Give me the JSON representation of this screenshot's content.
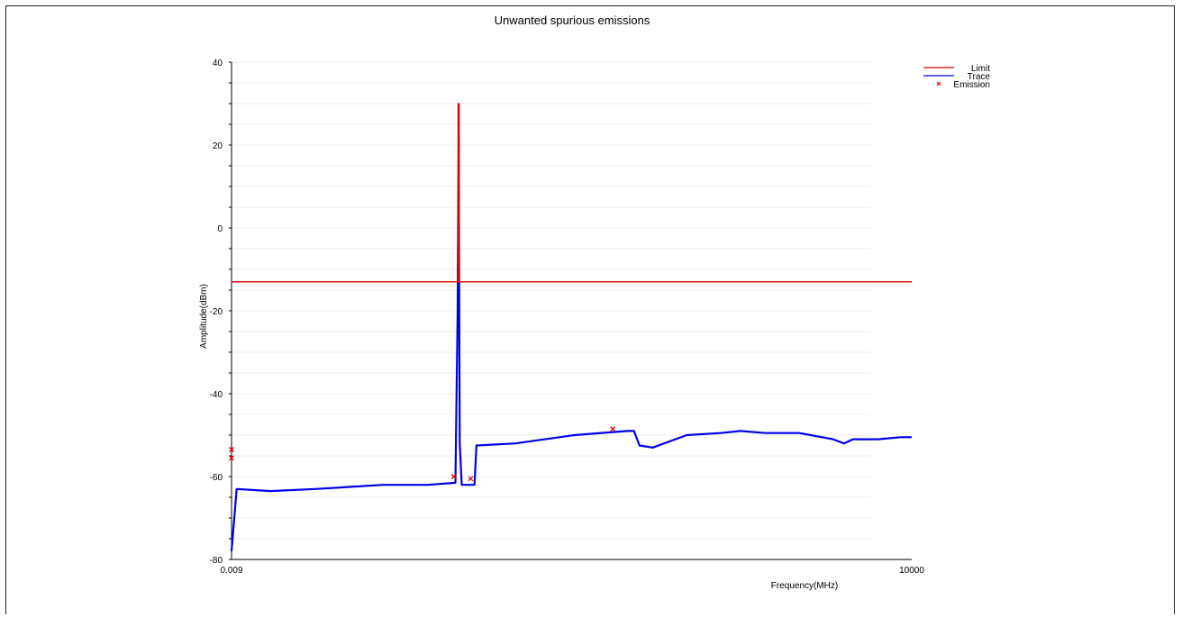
{
  "chart_data": {
    "type": "line",
    "title": "Unwanted spurious emissions",
    "xlabel": "Frequency(MHz)",
    "ylabel": "Amplitude(dBm)",
    "x_scale": "log",
    "xlim": [
      0.009,
      10000
    ],
    "ylim": [
      -80,
      40
    ],
    "x_tick_labels": [
      "0.009",
      "10000"
    ],
    "y_ticks": [
      40,
      20,
      0,
      -20,
      -40,
      -60,
      -80
    ],
    "grid": true,
    "legend_position": "top-right",
    "colors": {
      "limit": "#e00000",
      "trace": "#0000e6",
      "emission": "#e00000"
    },
    "series": [
      {
        "name": "Limit",
        "kind": "line",
        "x": [
          0.009,
          0.93,
          0.93,
          0.95,
          0.95,
          10000
        ],
        "y": [
          -13,
          -13,
          30,
          30,
          -13,
          -13
        ]
      },
      {
        "name": "Trace",
        "kind": "line",
        "x": [
          0.009,
          0.01,
          0.02,
          0.05,
          0.1,
          0.2,
          0.5,
          0.88,
          0.92,
          0.94,
          0.96,
          1.0,
          1.3,
          1.35,
          3,
          10,
          30,
          34,
          38,
          50,
          100,
          200,
          300,
          500,
          1000,
          2000,
          2500,
          3000,
          5000,
          8000,
          10000
        ],
        "y": [
          -78,
          -63,
          -63.5,
          -63,
          -62.5,
          -62,
          -62,
          -61.5,
          -20,
          22,
          -52,
          -62,
          -62,
          -52.5,
          -52,
          -50,
          -49,
          -49,
          -52.5,
          -53,
          -50,
          -49.5,
          -49,
          -49.5,
          -49.5,
          -51,
          -52,
          -51,
          -51,
          -50.5,
          -50.5
        ]
      },
      {
        "name": "Emission",
        "kind": "scatter",
        "x": [
          0.009,
          0.009,
          0.85,
          1.2,
          22
        ],
        "y": [
          -53.5,
          -55.5,
          -60,
          -60.5,
          -48.5
        ]
      }
    ]
  }
}
